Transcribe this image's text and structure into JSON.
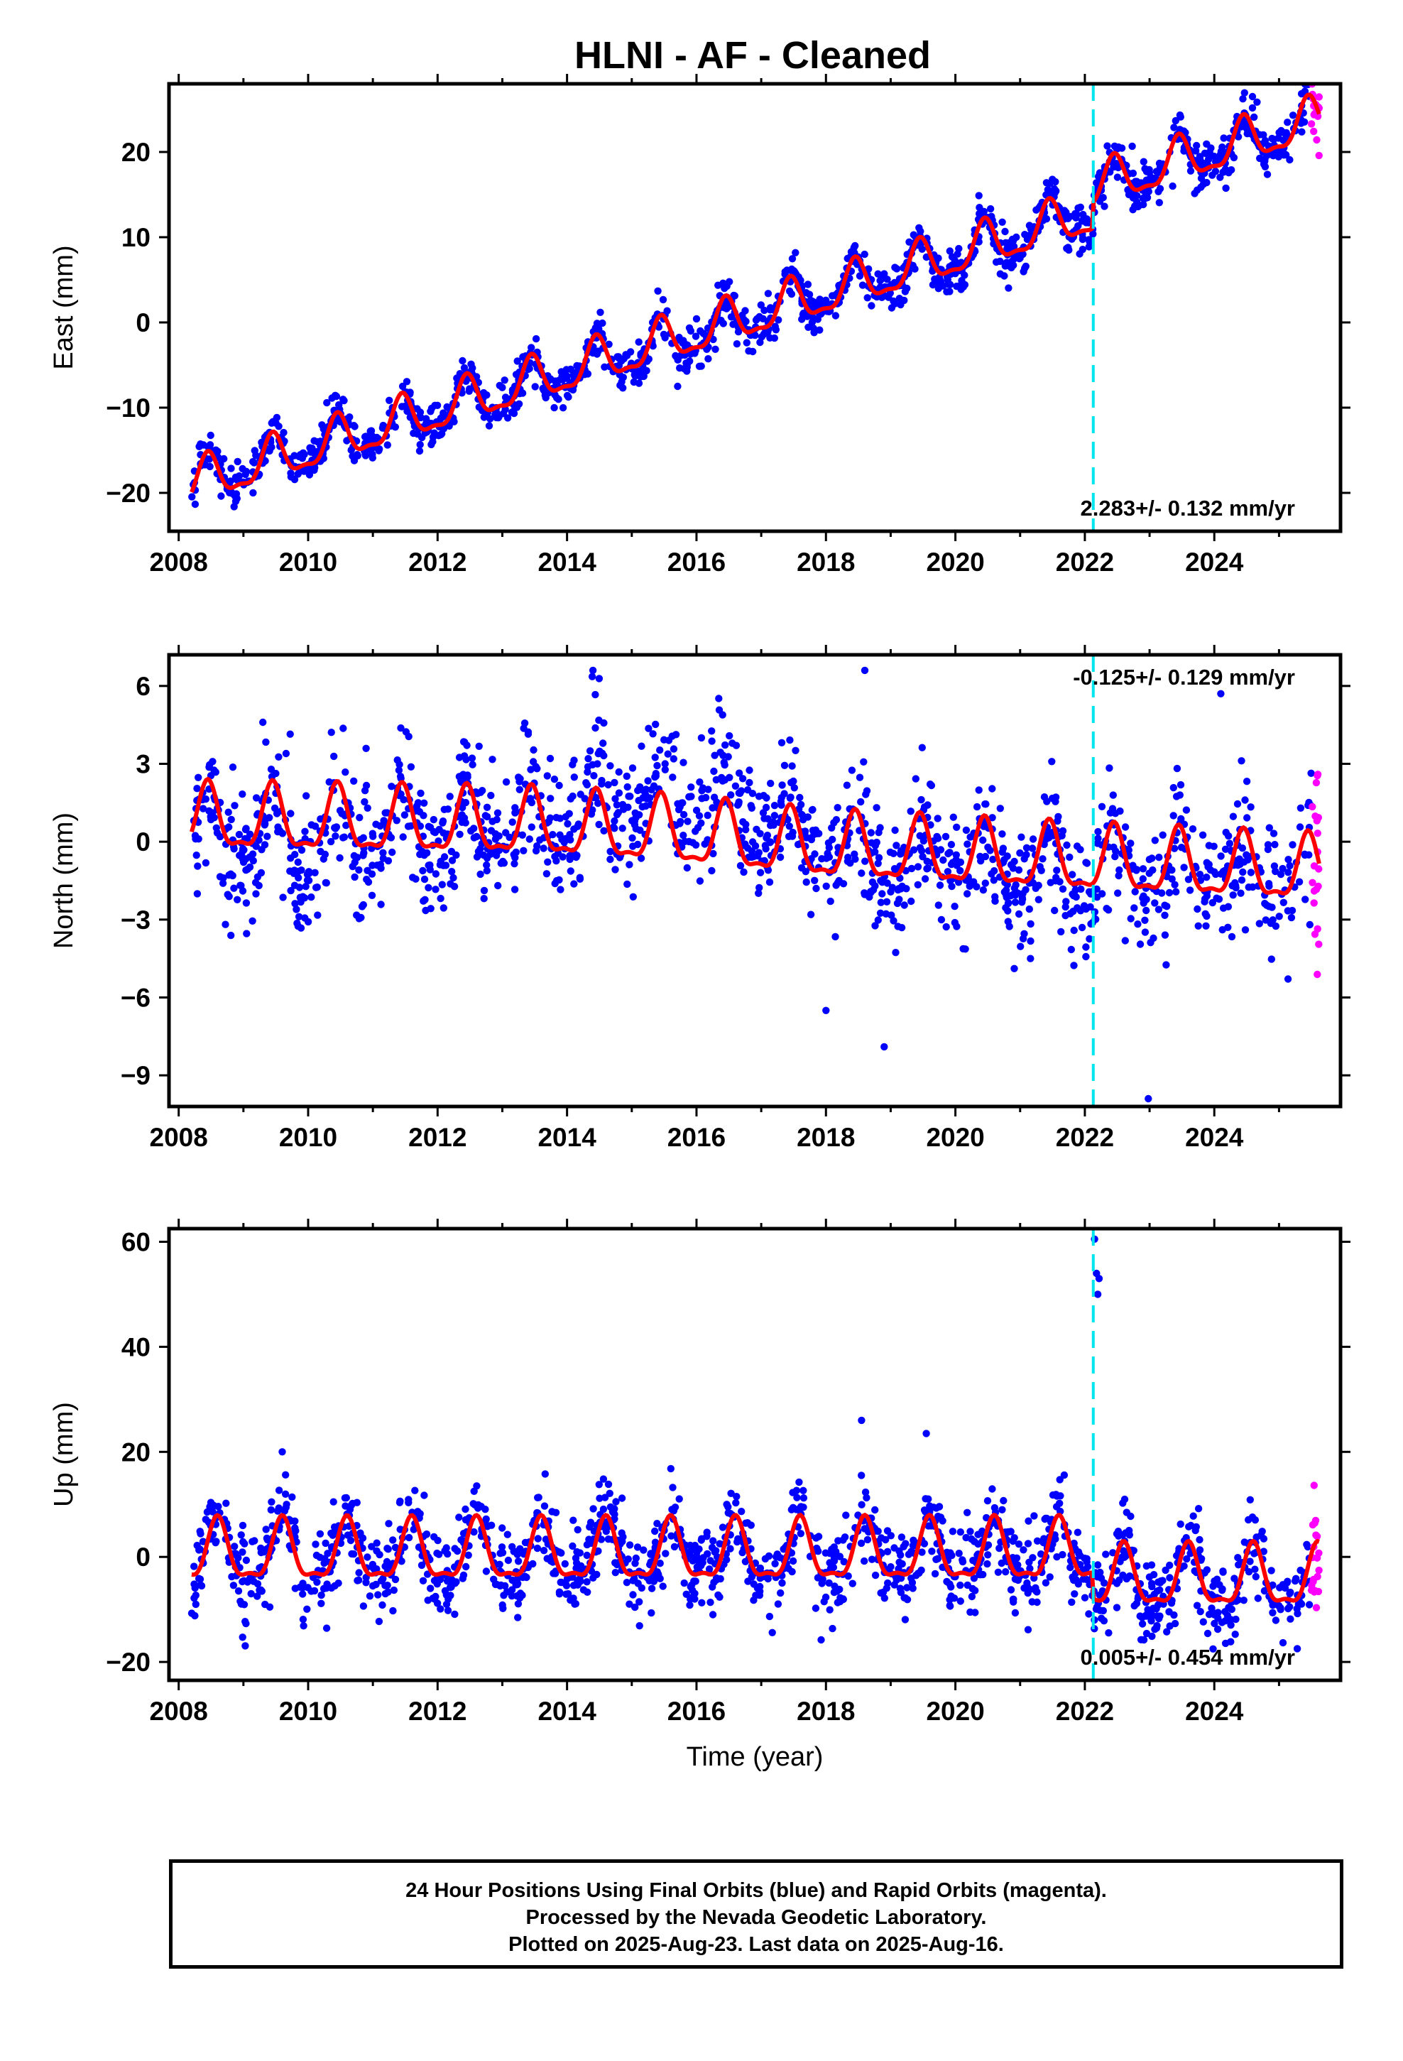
{
  "title": "HLNI  - AF - Cleaned",
  "colors": {
    "final_orbits": "#0000ff",
    "rapid_orbits": "#ff00ff",
    "model": "#ff0000",
    "event_line": "#00e5ee",
    "frame": "#000000"
  },
  "chart_data": [
    {
      "type": "scatter",
      "panel": "east",
      "ylabel": "East (mm)",
      "xlabel": "",
      "xlim": [
        2007.85,
        2025.95
      ],
      "ylim": [
        -24.5,
        28
      ],
      "xticks": [
        2008,
        2010,
        2012,
        2014,
        2016,
        2018,
        2020,
        2022,
        2024
      ],
      "yticks": [
        -20,
        -10,
        0,
        10,
        20
      ],
      "rate_label": "2.283+/- 0.132 mm/yr",
      "event_line_x": 2022.13,
      "data_span": [
        2008.2,
        2025.5
      ],
      "rapid_span": [
        2025.5,
        2025.62
      ],
      "trend": {
        "intercept_2008": -19.5,
        "slope_mm_per_yr": 2.283,
        "offset_at_event": 3.0
      },
      "seasonal": {
        "amplitude": 2.5,
        "peak_phase_yr": 0.45
      },
      "scatter_sd": 1.3,
      "series": [
        {
          "name": "Final Orbits",
          "color": "blue"
        },
        {
          "name": "Rapid Orbits",
          "color": "magenta"
        },
        {
          "name": "Model",
          "color": "red"
        }
      ]
    },
    {
      "type": "scatter",
      "panel": "north",
      "ylabel": "North (mm)",
      "xlabel": "",
      "xlim": [
        2007.85,
        2025.95
      ],
      "ylim": [
        -10.2,
        7.2
      ],
      "xticks": [
        2008,
        2010,
        2012,
        2014,
        2016,
        2018,
        2020,
        2022,
        2024
      ],
      "yticks": [
        -9,
        -6,
        -3,
        0,
        3,
        6
      ],
      "rate_label": "-0.125+/- 0.129 mm/yr",
      "event_line_x": 2022.13,
      "data_span": [
        2008.2,
        2025.5
      ],
      "rapid_span": [
        2025.5,
        2025.62
      ],
      "model_knots": [
        [
          2008.2,
          0.8
        ],
        [
          2013.5,
          0.6
        ],
        [
          2015.5,
          0.3
        ],
        [
          2018,
          -0.3
        ],
        [
          2022,
          -0.8
        ],
        [
          2025.6,
          -1.2
        ]
      ],
      "data_bias_knots": [
        [
          2008.2,
          0.0
        ],
        [
          2013.5,
          0.8
        ],
        [
          2015.3,
          2.0
        ],
        [
          2016.6,
          1.2
        ],
        [
          2018,
          -0.2
        ],
        [
          2022,
          -1.3
        ],
        [
          2025.6,
          -1.4
        ]
      ],
      "seasonal": {
        "amplitude": 1.2,
        "peak_phase_yr": 0.45
      },
      "scatter_sd": 1.2,
      "outliers": [
        [
          2014.4,
          6.6
        ],
        [
          2018.6,
          6.6
        ],
        [
          2018.0,
          -6.5
        ],
        [
          2018.9,
          -7.9
        ],
        [
          2022.98,
          -9.9
        ],
        [
          2024.1,
          5.7
        ],
        [
          2009.3,
          4.6
        ]
      ],
      "series": [
        {
          "name": "Final Orbits",
          "color": "blue"
        },
        {
          "name": "Rapid Orbits",
          "color": "magenta"
        },
        {
          "name": "Model",
          "color": "red"
        }
      ]
    },
    {
      "type": "scatter",
      "panel": "up",
      "ylabel": "Up (mm)",
      "xlabel": "Time (year)",
      "xlim": [
        2007.85,
        2025.95
      ],
      "ylim": [
        -23.5,
        62.5
      ],
      "xticks": [
        2008,
        2010,
        2012,
        2014,
        2016,
        2018,
        2020,
        2022,
        2024
      ],
      "yticks": [
        -20,
        0,
        20,
        40,
        60
      ],
      "rate_label": "0.005+/- 0.454 mm/yr",
      "event_line_x": 2022.13,
      "data_span": [
        2008.2,
        2025.5
      ],
      "rapid_span": [
        2025.5,
        2025.62
      ],
      "trend": {
        "intercept_2008": 0.5,
        "slope_mm_per_yr": 0.005,
        "offset_at_event": -5.0
      },
      "seasonal": {
        "amplitude": 5.5,
        "peak_phase_yr": 0.6
      },
      "scatter_sd": 4.0,
      "outliers": [
        [
          2022.15,
          60.5
        ],
        [
          2022.18,
          54.0
        ],
        [
          2022.2,
          50.0
        ],
        [
          2022.22,
          53.0
        ],
        [
          2018.55,
          26.0
        ],
        [
          2019.55,
          23.5
        ],
        [
          2009.6,
          20.0
        ]
      ],
      "series": [
        {
          "name": "Final Orbits",
          "color": "blue"
        },
        {
          "name": "Rapid Orbits",
          "color": "magenta"
        },
        {
          "name": "Model",
          "color": "red"
        }
      ]
    }
  ],
  "caption": {
    "line1": "24 Hour Positions Using Final Orbits (blue) and Rapid Orbits (magenta).",
    "line2": "Processed by the Nevada Geodetic Laboratory.",
    "line3": "Plotted on 2025-Aug-23. Last data on 2025-Aug-16."
  }
}
